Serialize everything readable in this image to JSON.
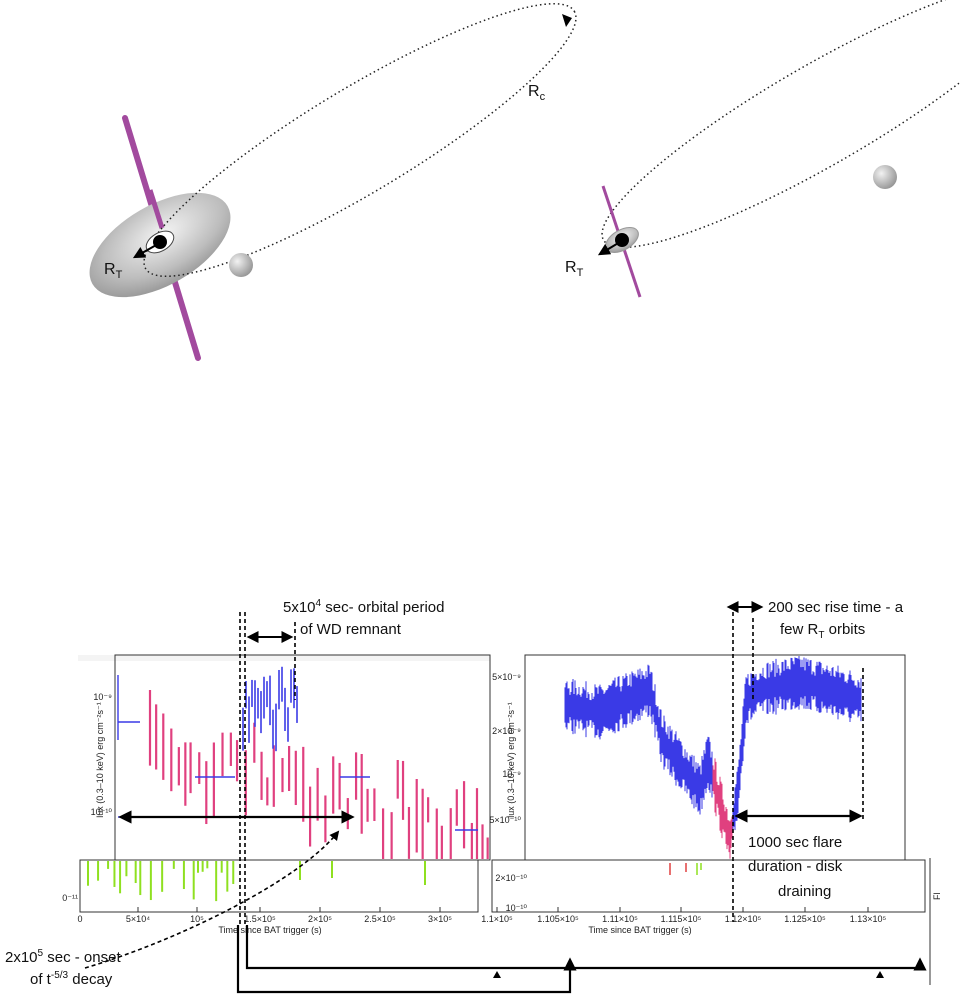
{
  "diagram": {
    "labels": {
      "rc": [
        "R",
        "c"
      ],
      "rt_left": [
        "R",
        "T"
      ],
      "rt_right": [
        "R",
        "T"
      ]
    },
    "annotations": {
      "orbital_period": {
        "line1": [
          "5x10",
          "4",
          " sec- orbital period"
        ],
        "line2": "of WD remnant"
      },
      "rise_time": {
        "line1": "200 sec rise time - a",
        "line2": [
          "few R",
          "T",
          " orbits"
        ]
      },
      "flare_duration": {
        "line1": "1000 sec flare",
        "line2": "duration - disk",
        "line3": "draining"
      },
      "onset": {
        "line1": [
          "2x10",
          "5",
          " sec - onset"
        ],
        "line2": [
          "of t",
          "-5/3",
          " decay"
        ]
      }
    },
    "left_plot": {
      "y_title": "lux (0.3–10 keV) erg cm⁻²s⁻¹",
      "x_title": "Time since BAT trigger (s)",
      "yticks": [
        "10⁻⁹",
        "10⁻¹⁰",
        "0⁻¹¹"
      ],
      "xticks": [
        "0",
        "5×10⁴",
        "10⁵",
        "1.5×10⁵",
        "2×10⁵",
        "2.5×10⁵",
        "3×10⁵"
      ]
    },
    "right_plot": {
      "y_title": "lux (0.3–10 keV) erg cm⁻²s⁻¹",
      "x_title": "Time since BAT trigger (s)",
      "yticks": [
        "5×10⁻⁹",
        "2×10⁻⁹",
        "10⁻⁹",
        "5×10⁻¹⁰"
      ],
      "lower_yticks": [
        "2×10⁻¹⁰",
        "10⁻¹⁰"
      ],
      "xticks": [
        "1.1×10⁵",
        "1.105×10⁵",
        "1.11×10⁵",
        "1.115×10⁵",
        "1.12×10⁵",
        "1.125×10⁵",
        "1.13×10⁵"
      ],
      "edge_label": "Fl"
    }
  }
}
